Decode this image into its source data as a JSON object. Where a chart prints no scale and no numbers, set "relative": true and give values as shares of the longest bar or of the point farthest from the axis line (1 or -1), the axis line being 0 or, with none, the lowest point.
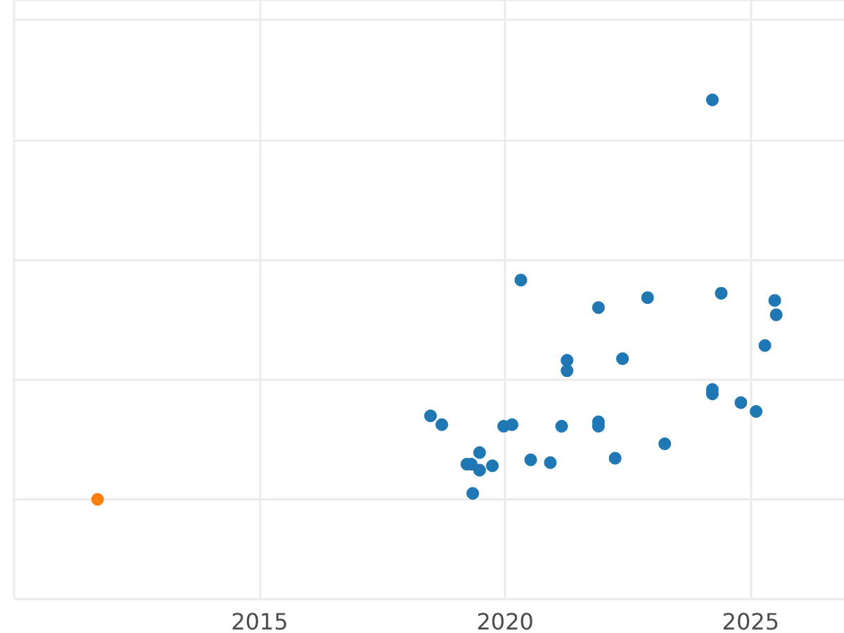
{
  "chart_data": {
    "type": "scatter",
    "relative": true,
    "grid": true,
    "marker": "circle",
    "xlim": [
      2010,
      2026.9
    ],
    "xticks": [
      {
        "value": 2010,
        "label": null
      },
      2015,
      2020,
      2025
    ],
    "series": [
      {
        "color": "#ff7f0e",
        "x": [
          2011.7
        ],
        "values": [
          0
        ]
      },
      {
        "color": "#1f77b4",
        "x": [
          2018.48,
          2018.71,
          2019.22,
          2019.31,
          2019.48,
          2019.48,
          2019.34,
          2019.74,
          2019.97,
          2020.14,
          2020.32,
          2020.52,
          2020.92,
          2021.15,
          2021.26,
          2021.26,
          2021.9,
          2021.9,
          2021.9,
          2022.24,
          2022.39,
          2022.9,
          2023.25,
          2024.22,
          2024.22,
          2024.22,
          2024.4,
          2024.8,
          2025.11,
          2025.29,
          2025.49,
          2025.52
        ],
        "values": [
          0.209,
          0.187,
          0.088,
          0.088,
          0.117,
          0.073,
          0.015,
          0.084,
          0.183,
          0.187,
          0.549,
          0.099,
          0.092,
          0.183,
          0.348,
          0.322,
          0.48,
          0.194,
          0.183,
          0.103,
          0.352,
          0.505,
          0.139,
          1,
          0.275,
          0.264,
          0.516,
          0.242,
          0.22,
          0.385,
          0.498,
          0.462
        ]
      }
    ]
  }
}
